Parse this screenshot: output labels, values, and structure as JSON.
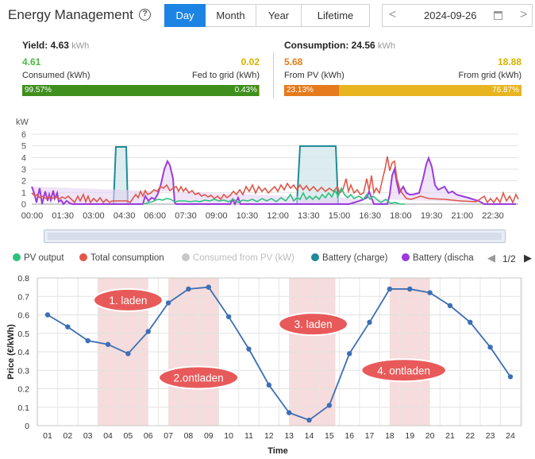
{
  "header": {
    "title": "Energy Management",
    "tabs": [
      {
        "label": "Day",
        "active": true
      },
      {
        "label": "Month",
        "active": false
      },
      {
        "label": "Year",
        "active": false
      },
      {
        "label": "Lifetime",
        "active": false
      }
    ],
    "date": "2024-09-26",
    "prev_arrow": "<",
    "next_arrow": ">"
  },
  "yield": {
    "label": "Yield:",
    "value": "4.63",
    "unit": "kWh",
    "consumed_value": "4.61",
    "fed_value": "0.02",
    "consumed_label": "Consumed (kWh)",
    "fed_label": "Fed to grid (kWh)",
    "consumed_pct": "99.57%",
    "fed_pct": "0.43%",
    "consumed_fraction": 0.9957
  },
  "consumption": {
    "label": "Consumption:",
    "value": "24.56",
    "unit": "kWh",
    "pv_value": "5.68",
    "grid_value": "18.88",
    "pv_label": "From PV (kWh)",
    "grid_label": "From grid (kWh)",
    "pv_pct": "23.13%",
    "grid_pct": "76.87%",
    "pv_fraction": 0.2313
  },
  "colors": {
    "accent": "#1d84e3",
    "yield_green": "#4cb847",
    "fed_yellow": "#d6b300",
    "bar_green": "#3f8f1c",
    "bar_orange": "#e57b1c",
    "bar_yellow": "#e8b420",
    "pv_output": "#2ec27e",
    "total_consumption": "#e0574a",
    "consumed_from_pv": "#c0c0c0",
    "battery_charge": "#1f8a9a",
    "battery_discharge": "#9b3bdc",
    "price_line": "#3d6fb5",
    "band": "#f3d0d0",
    "bubble": "#e85a5a"
  },
  "power_chart": {
    "y_unit": "kW",
    "y_ticks": [
      "0",
      "1",
      "2",
      "3",
      "4",
      "5",
      "6"
    ],
    "x_ticks": [
      "00:00",
      "01:30",
      "03:00",
      "04:30",
      "06:00",
      "07:30",
      "09:00",
      "10:30",
      "12:00",
      "13:30",
      "15:00",
      "16:30",
      "18:00",
      "19:30",
      "21:00",
      "22:30"
    ]
  },
  "legend": {
    "items": [
      {
        "label": "PV output",
        "color": "#2ec27e",
        "muted": false
      },
      {
        "label": "Total consumption",
        "color": "#e0574a",
        "muted": false
      },
      {
        "label": "Consumed from PV (kW)",
        "color": "#c8c8c8",
        "muted": true
      },
      {
        "label": "Battery (charge)",
        "color": "#1f8a9a",
        "muted": false
      },
      {
        "label": "Battery (discha",
        "color": "#9b3bdc",
        "muted": false
      }
    ],
    "page": "1/2"
  },
  "chart_data": {
    "type": "line",
    "title": "",
    "xlabel": "Time",
    "ylabel": "Price (€/kWh)",
    "categories": [
      "01",
      "02",
      "03",
      "04",
      "05",
      "06",
      "07",
      "08",
      "09",
      "10",
      "11",
      "12",
      "13",
      "14",
      "15",
      "16",
      "17",
      "18",
      "19",
      "20",
      "21",
      "22",
      "23",
      "24"
    ],
    "values": [
      0.6,
      0.535,
      0.46,
      0.44,
      0.39,
      0.51,
      0.665,
      0.74,
      0.75,
      0.59,
      0.415,
      0.22,
      0.07,
      0.03,
      0.11,
      0.39,
      0.56,
      0.74,
      0.74,
      0.72,
      0.65,
      0.56,
      0.425,
      0.265
    ],
    "ylim": [
      0,
      0.8
    ],
    "y_ticks": [
      "0",
      "0.1",
      "0.2",
      "0.3",
      "0.4",
      "0.5",
      "0.6",
      "0.7",
      "0.8"
    ],
    "bands": [
      {
        "from": 3.5,
        "to": 6.0
      },
      {
        "from": 7.0,
        "to": 9.5
      },
      {
        "from": 13.0,
        "to": 15.3
      },
      {
        "from": 18.0,
        "to": 20.0
      }
    ],
    "annotations": [
      {
        "text": "1. laden",
        "x": 5.0,
        "y": 0.68
      },
      {
        "text": "2.ontladen",
        "x": 8.5,
        "y": 0.26
      },
      {
        "text": "3. laden",
        "x": 14.2,
        "y": 0.55
      },
      {
        "text": "4. ontladen",
        "x": 18.7,
        "y": 0.3
      }
    ]
  }
}
